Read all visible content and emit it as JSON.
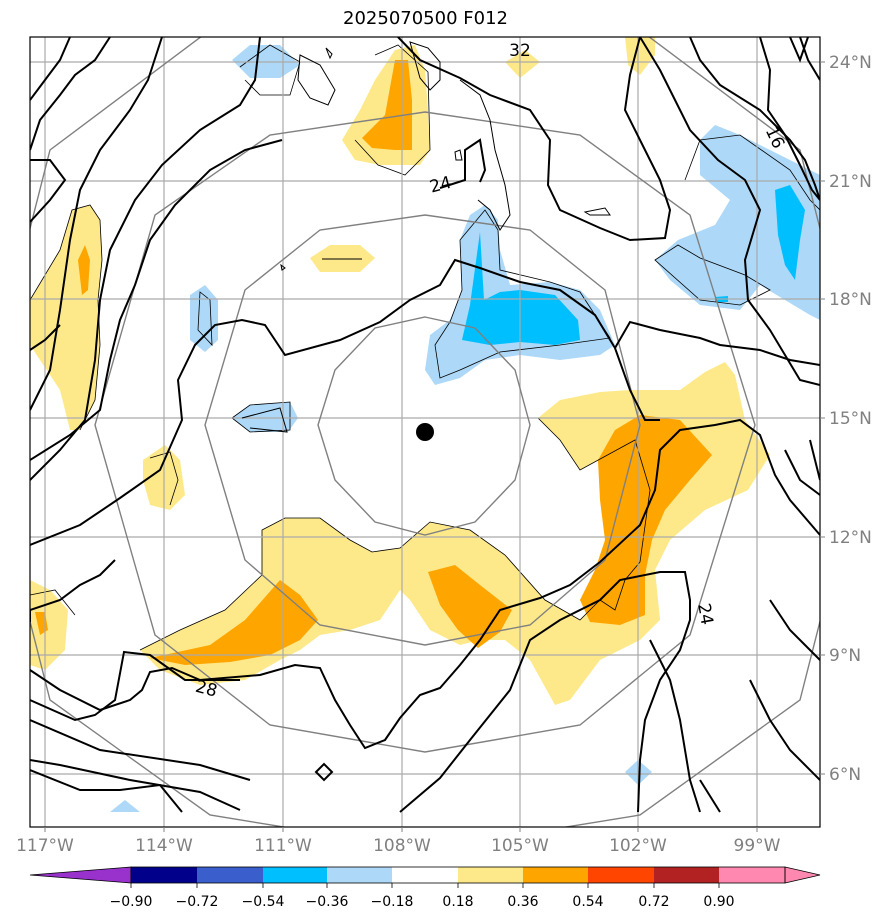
{
  "title": "2025070500 F012",
  "colors": {
    "pos1": "#fee98a",
    "pos2": "#ffa500",
    "pos3": "#ff4500",
    "pos4": "#b22222",
    "pos5": "#ff88b0",
    "neg1": "#add8f7",
    "neg2": "#00bfff",
    "neg3": "#3a5fcd",
    "neg4": "#00008b",
    "neg5": "#9932cc",
    "grid": "#aaaaaa",
    "ring": "#808080",
    "contour": "#000000",
    "center": "#000000"
  },
  "map": {
    "lon_labels": [
      "117°W",
      "114°W",
      "111°W",
      "108°W",
      "105°W",
      "102°W",
      "99°W"
    ],
    "lat_labels": [
      "24°N",
      "21°N",
      "18°N",
      "15°N",
      "12°N",
      "9°N",
      "6°N"
    ],
    "contour_labels": [
      "32",
      "24",
      "16",
      "28",
      "24"
    ],
    "center_marker": "storm-center-dot"
  },
  "colorbar": {
    "levels": [
      "−0.90",
      "−0.72",
      "−0.54",
      "−0.36",
      "−0.18",
      "0.18",
      "0.36",
      "0.54",
      "0.72",
      "0.90"
    ],
    "colors": [
      "#9932cc",
      "#00008b",
      "#3a5fcd",
      "#00bfff",
      "#add8f7",
      "#ffffff",
      "#fee98a",
      "#ffa500",
      "#ff4500",
      "#b22222",
      "#ff88b0"
    ]
  }
}
